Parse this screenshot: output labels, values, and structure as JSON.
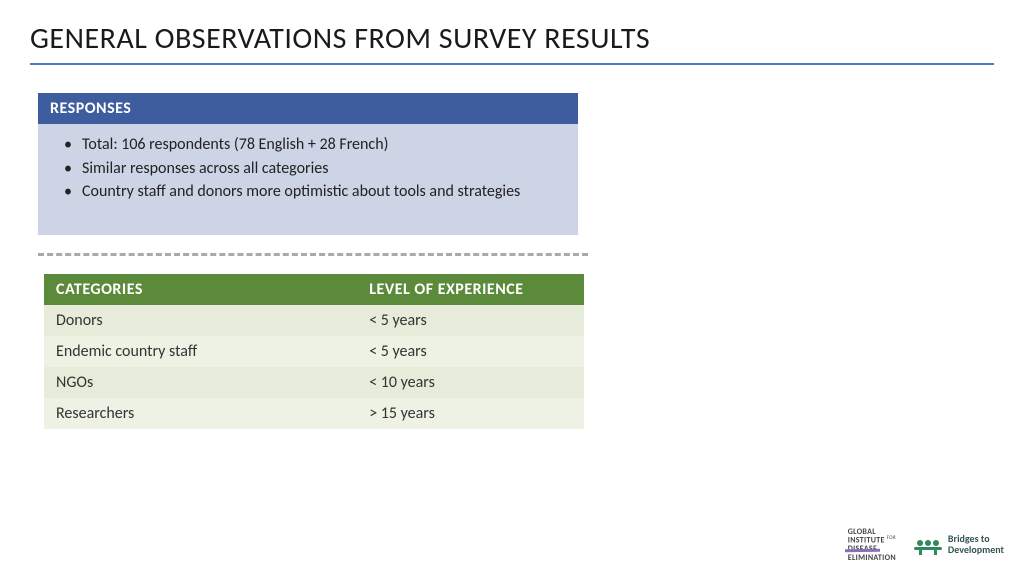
{
  "title": "GENERAL OBSERVATIONS FROM SURVEY RESULTS",
  "colors": {
    "title_underline": "#4a7ac7",
    "responses_header_bg": "#3d5d9e",
    "responses_body_bg": "#cdd4e6",
    "divider": "#a7aaa9",
    "table_header_bg": "#5a8a3a",
    "table_row_a": "#e6ecd9",
    "table_row_b": "#eef2e4",
    "text": "#333333",
    "background": "#ffffff"
  },
  "responses": {
    "header": "RESPONSES",
    "bullets": [
      "Total: 106 respondents (78 English + 28 French)",
      "Similar responses across all categories",
      "Country staff and donors more optimistic about tools and strategies"
    ]
  },
  "table": {
    "columns": [
      "CATEGORIES",
      "LEVEL OF EXPERIENCE"
    ],
    "rows": [
      [
        "Donors",
        "< 5 years"
      ],
      [
        "Endemic country staff",
        " < 5 years"
      ],
      [
        "NGOs",
        " < 10 years"
      ],
      [
        "Researchers",
        " > 15 years"
      ]
    ],
    "col_widths_pct": [
      58,
      42
    ]
  },
  "logos": {
    "logo1": {
      "line1": "GLOBAL",
      "line2a": "INSTITUTE",
      "line2b": "FOR",
      "line3_struck": "DISEASE",
      "line4": "ELIMINATION"
    },
    "logo2": {
      "line1": "Bridges to",
      "line2": "Development"
    }
  },
  "typography": {
    "title_fontsize": 30,
    "body_fontsize": 16,
    "header_fontsize": 16
  }
}
